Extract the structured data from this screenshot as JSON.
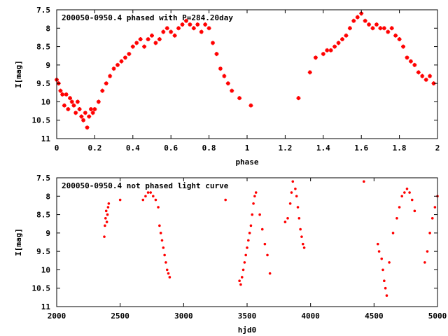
{
  "colors": {
    "points": "#ff0000",
    "frame": "#000000",
    "background": "#ffffff"
  },
  "chart_data": [
    {
      "type": "scatter",
      "title": "200050-0950.4 phased with P=284.20day",
      "xlabel": "phase",
      "ylabel": "I[mag]",
      "xlim": [
        0,
        2
      ],
      "ylim": [
        7.5,
        11
      ],
      "y_inverted": true,
      "grid": false,
      "marker": "cross",
      "xticks": [
        "0",
        "0.2",
        "0.4",
        "0.6",
        "0.8",
        "1",
        "1.2",
        "1.4",
        "1.6",
        "1.8",
        "2"
      ],
      "yticks": [
        "7.5",
        "8",
        "8.5",
        "9",
        "9.5",
        "10",
        "10.5",
        "11"
      ],
      "series": [
        {
          "x": [
            0.0,
            0.01,
            0.02,
            0.03,
            0.04,
            0.05,
            0.06,
            0.07,
            0.08,
            0.09,
            0.1,
            0.11,
            0.12,
            0.13,
            0.14,
            0.15,
            0.16,
            0.17,
            0.18,
            0.19,
            0.2,
            0.22,
            0.24,
            0.26,
            0.28,
            0.3,
            0.32,
            0.34,
            0.36,
            0.38,
            0.4,
            0.42,
            0.44,
            0.46,
            0.48,
            0.5,
            0.52,
            0.54,
            0.56,
            0.58,
            0.6,
            0.62,
            0.64,
            0.66,
            0.68,
            0.7,
            0.72,
            0.74,
            0.76,
            0.78,
            0.8,
            0.82,
            0.84,
            0.86,
            0.88,
            0.9,
            0.92,
            0.96,
            1.02,
            1.27,
            1.33,
            1.36,
            1.4,
            1.42,
            1.44,
            1.46,
            1.48,
            1.5,
            1.52,
            1.54,
            1.56,
            1.58,
            1.6,
            1.62,
            1.64,
            1.66,
            1.68,
            1.7,
            1.72,
            1.74,
            1.76,
            1.78,
            1.8,
            1.82,
            1.84,
            1.86,
            1.88,
            1.9,
            1.92,
            1.94,
            1.96,
            1.98
          ],
          "y": [
            9.4,
            9.5,
            9.7,
            9.8,
            10.1,
            9.8,
            10.2,
            9.9,
            10.0,
            10.1,
            10.3,
            10.0,
            10.2,
            10.4,
            10.5,
            10.3,
            10.7,
            10.4,
            10.2,
            10.3,
            10.2,
            10.0,
            9.7,
            9.5,
            9.3,
            9.1,
            9.0,
            8.9,
            8.8,
            8.7,
            8.5,
            8.4,
            8.3,
            8.5,
            8.3,
            8.2,
            8.4,
            8.3,
            8.1,
            8.0,
            8.1,
            8.2,
            8.0,
            7.9,
            7.8,
            7.9,
            8.0,
            7.9,
            8.1,
            7.9,
            8.0,
            8.4,
            8.7,
            9.1,
            9.3,
            9.5,
            9.7,
            9.9,
            10.1,
            9.9,
            9.2,
            8.8,
            8.7,
            8.6,
            8.6,
            8.5,
            8.4,
            8.3,
            8.2,
            8.0,
            7.8,
            7.7,
            7.6,
            7.8,
            7.9,
            8.0,
            7.9,
            8.0,
            8.0,
            8.1,
            8.0,
            8.2,
            8.3,
            8.5,
            8.8,
            8.9,
            9.0,
            9.2,
            9.3,
            9.4,
            9.3,
            9.5
          ]
        }
      ]
    },
    {
      "type": "scatter",
      "title": "200050-0950.4 not phased light curve",
      "xlabel": "hjd0",
      "ylabel": "I[mag]",
      "xlim": [
        2000,
        5000
      ],
      "ylim": [
        7.5,
        11
      ],
      "y_inverted": true,
      "grid": false,
      "marker": "dot",
      "xticks": [
        "2000",
        "2500",
        "3000",
        "3500",
        "4000",
        "4500",
        "5000"
      ],
      "yticks": [
        "7.5",
        "8",
        "8.5",
        "9",
        "9.5",
        "10",
        "10.5",
        "11"
      ],
      "series": [
        {
          "x": [
            2375,
            2380,
            2385,
            2390,
            2395,
            2400,
            2405,
            2410,
            2500,
            2680,
            2700,
            2720,
            2740,
            2760,
            2780,
            2800,
            2810,
            2820,
            2830,
            2840,
            2850,
            2860,
            2870,
            2880,
            2890,
            3330,
            3440,
            3450,
            3460,
            3470,
            3480,
            3490,
            3500,
            3510,
            3520,
            3530,
            3540,
            3550,
            3560,
            3570,
            3600,
            3620,
            3640,
            3660,
            3680,
            3800,
            3820,
            3840,
            3850,
            3860,
            3880,
            3890,
            3900,
            3910,
            3920,
            3930,
            3940,
            3950,
            4420,
            4530,
            4540,
            4560,
            4570,
            4580,
            4590,
            4600,
            4620,
            4650,
            4680,
            4700,
            4720,
            4740,
            4760,
            4780,
            4800,
            4820,
            4900,
            4920,
            4940,
            4960,
            4980,
            5000
          ],
          "y": [
            9.1,
            8.8,
            8.6,
            8.4,
            8.7,
            8.5,
            8.3,
            8.2,
            8.1,
            8.1,
            8.0,
            7.9,
            7.9,
            8.0,
            8.1,
            8.3,
            8.8,
            9.0,
            9.2,
            9.4,
            9.6,
            9.8,
            10.0,
            10.1,
            10.2,
            8.1,
            10.3,
            10.4,
            10.2,
            10.0,
            9.8,
            9.6,
            9.4,
            9.2,
            9.0,
            8.8,
            8.5,
            8.2,
            8.0,
            7.9,
            8.5,
            8.9,
            9.3,
            9.6,
            10.1,
            8.7,
            8.6,
            8.2,
            7.9,
            7.6,
            7.8,
            8.0,
            8.3,
            8.6,
            8.9,
            9.1,
            9.3,
            9.4,
            7.6,
            9.3,
            9.5,
            9.7,
            10.0,
            10.3,
            10.5,
            10.7,
            9.8,
            9.0,
            8.6,
            8.3,
            8.0,
            7.9,
            7.8,
            7.9,
            8.1,
            8.4,
            9.8,
            9.5,
            9.0,
            8.6,
            8.3,
            8.0
          ]
        }
      ]
    }
  ]
}
